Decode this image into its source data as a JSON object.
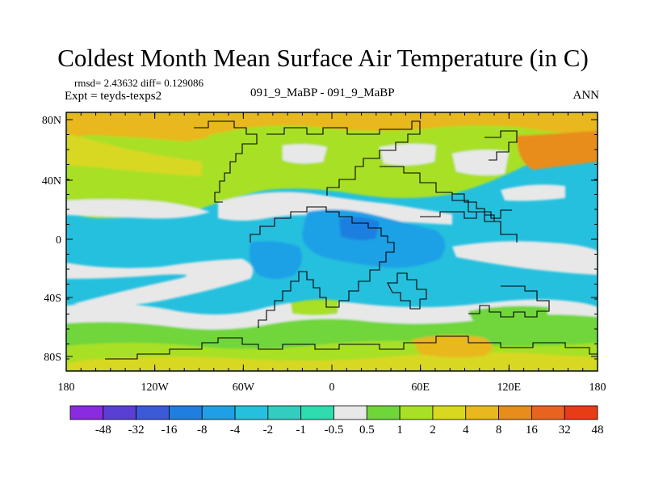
{
  "title": "Coldest Month Mean Surface Air Temperature (in C)",
  "stats_line": "rmsd= 2.43632 diff= 0.129086",
  "expt_line": "Expt = teyds-texps2",
  "center_label": "091_9_MaBP - 091_9_MaBP",
  "season_label": "ANN",
  "lat_labels": [
    "80N",
    "40N",
    "0",
    "40S",
    "80S"
  ],
  "lon_labels": [
    "180",
    "120W",
    "60W",
    "0",
    "60E",
    "120E",
    "180"
  ],
  "colorbar": {
    "labels": [
      "-48",
      "-32",
      "-16",
      "-8",
      "-4",
      "-2",
      "-1",
      "-0.5",
      "0.5",
      "1",
      "2",
      "4",
      "8",
      "16",
      "32",
      "48"
    ],
    "colors": [
      "#8a2be2",
      "#5a3fd4",
      "#3a5ad8",
      "#1e7fe0",
      "#1fa0e6",
      "#25c0de",
      "#33ccc0",
      "#2edcb0",
      "#e8e8e8",
      "#6fd63a",
      "#a8e026",
      "#d8d820",
      "#e8b81e",
      "#e88c1c",
      "#e8641e",
      "#e83c14"
    ]
  }
}
